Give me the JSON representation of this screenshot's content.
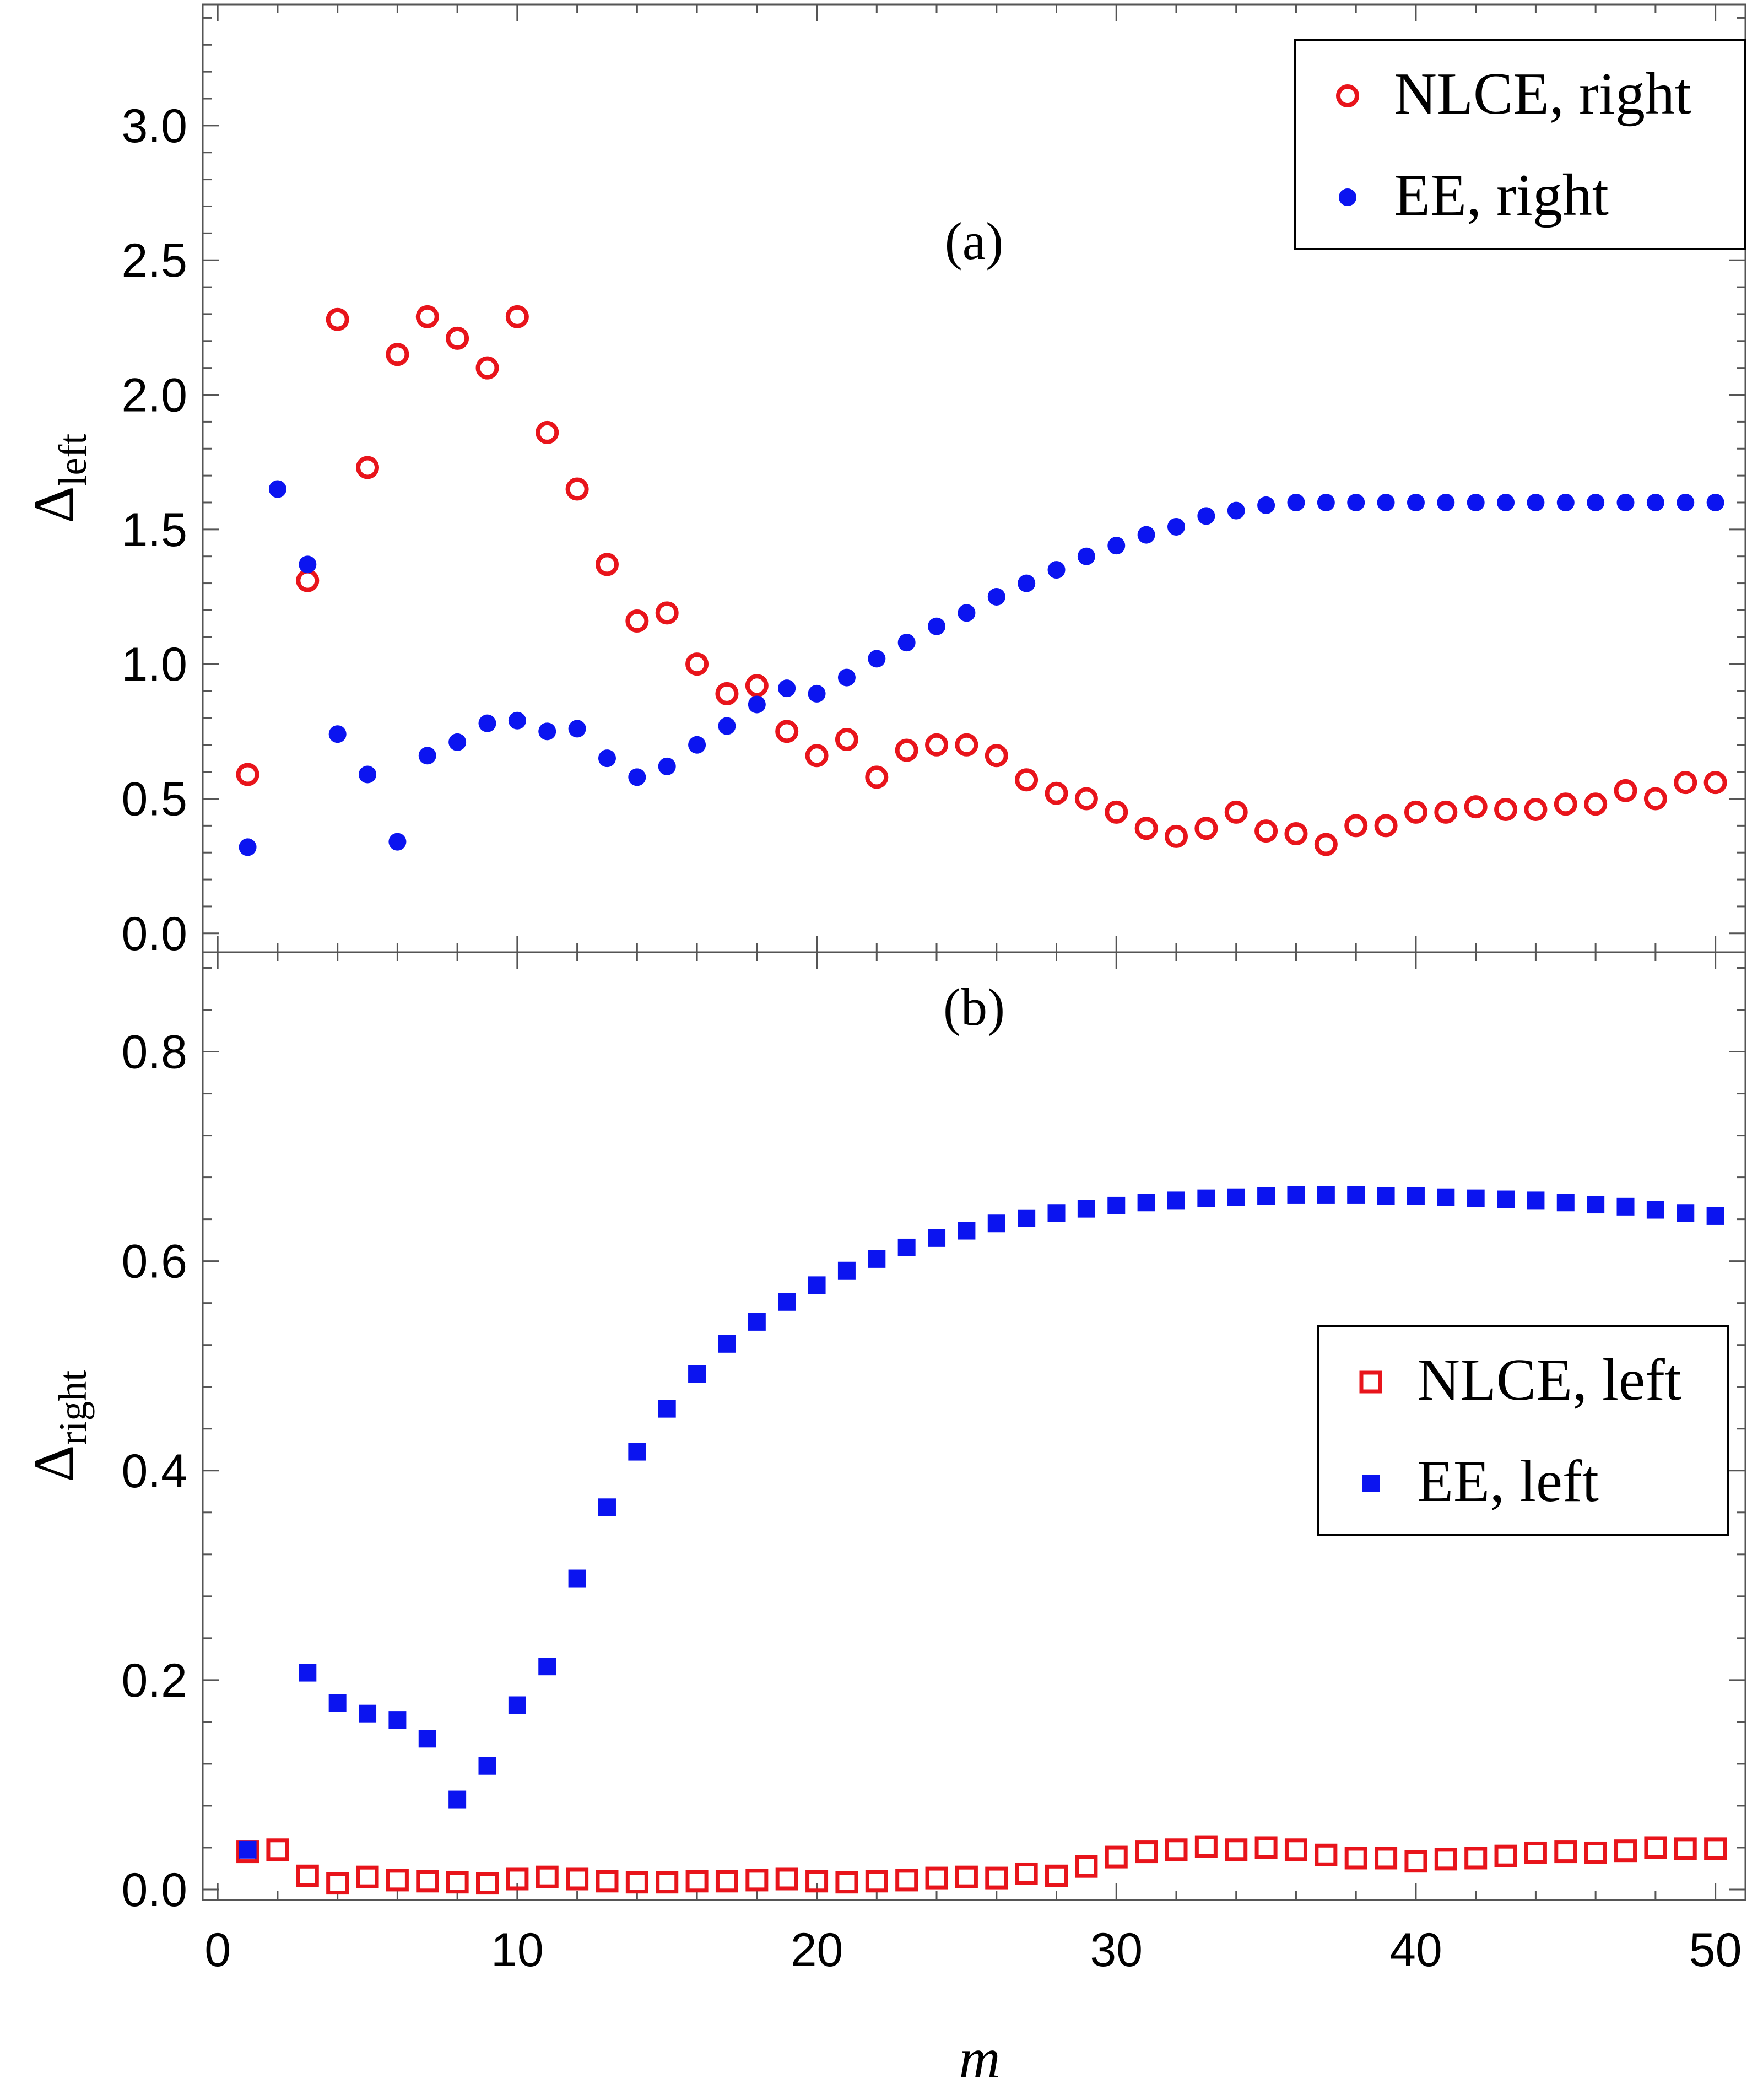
{
  "chart_data": [
    {
      "type": "scatter",
      "panel_label": "(a)",
      "ylabel_main": "Δ",
      "ylabel_sub": "left",
      "xlabel": "",
      "xlim": [
        -0.5,
        51
      ],
      "ylim": [
        -0.07,
        3.45
      ],
      "xticks": [
        "0",
        "10",
        "20",
        "30",
        "40",
        "50"
      ],
      "yticks": [
        "0.0",
        "0.5",
        "1.0",
        "1.5",
        "2.0",
        "2.5",
        "3.0"
      ],
      "legend_position": "top-right",
      "series": [
        {
          "name": "NLCE, right",
          "marker": "open-circle",
          "color": "#e8141b",
          "x": [
            1,
            3,
            4,
            5,
            6,
            7,
            8,
            9,
            10,
            11,
            12,
            13,
            14,
            15,
            16,
            17,
            18,
            19,
            20,
            21,
            22,
            23,
            24,
            25,
            26,
            27,
            28,
            29,
            30,
            31,
            32,
            33,
            34,
            35,
            36,
            37,
            38,
            39,
            40,
            41,
            42,
            43,
            44,
            45,
            46,
            47,
            48,
            49,
            50
          ],
          "y": [
            0.59,
            1.31,
            2.28,
            1.73,
            2.15,
            2.29,
            2.21,
            2.1,
            2.29,
            1.86,
            1.65,
            1.37,
            1.16,
            1.19,
            1.0,
            0.89,
            0.92,
            0.75,
            0.66,
            0.72,
            0.58,
            0.68,
            0.7,
            0.7,
            0.66,
            0.57,
            0.52,
            0.5,
            0.45,
            0.39,
            0.36,
            0.39,
            0.45,
            0.38,
            0.37,
            0.33,
            0.4,
            0.4,
            0.45,
            0.45,
            0.47,
            0.46,
            0.46,
            0.48,
            0.48,
            0.53,
            0.5,
            0.56,
            0.56
          ]
        },
        {
          "name": "EE, right",
          "marker": "filled-circle",
          "color": "#0b14f0",
          "x": [
            1,
            2,
            3,
            4,
            5,
            6,
            7,
            8,
            9,
            10,
            11,
            12,
            13,
            14,
            15,
            16,
            17,
            18,
            19,
            20,
            21,
            22,
            23,
            24,
            25,
            26,
            27,
            28,
            29,
            30,
            31,
            32,
            33,
            34,
            35,
            36,
            37,
            38,
            39,
            40,
            41,
            42,
            43,
            44,
            45,
            46,
            47,
            48,
            49,
            50
          ],
          "y": [
            0.32,
            1.65,
            1.37,
            0.74,
            0.59,
            0.34,
            0.66,
            0.71,
            0.78,
            0.79,
            0.75,
            0.76,
            0.65,
            0.58,
            0.62,
            0.7,
            0.77,
            0.85,
            0.91,
            0.89,
            0.95,
            1.02,
            1.08,
            1.14,
            1.19,
            1.25,
            1.3,
            1.35,
            1.4,
            1.44,
            1.48,
            1.51,
            1.55,
            1.57,
            1.59,
            1.6,
            1.6,
            1.6,
            1.6,
            1.6,
            1.6,
            1.6,
            1.6,
            1.6,
            1.6,
            1.6,
            1.6,
            1.6,
            1.6,
            1.6
          ]
        }
      ]
    },
    {
      "type": "scatter",
      "panel_label": "(b)",
      "ylabel_main": "Δ",
      "ylabel_sub": "right",
      "xlabel": "m",
      "xlim": [
        -0.5,
        51
      ],
      "ylim": [
        -0.01,
        0.895
      ],
      "xticks": [
        "0",
        "10",
        "20",
        "30",
        "40",
        "50"
      ],
      "yticks": [
        "0.0",
        "0.2",
        "0.4",
        "0.6",
        "0.8"
      ],
      "legend_position": "center-right",
      "series": [
        {
          "name": "NLCE, left",
          "marker": "open-square",
          "color": "#e8141b",
          "x": [
            1,
            2,
            3,
            4,
            5,
            6,
            7,
            8,
            9,
            10,
            11,
            12,
            13,
            14,
            15,
            16,
            17,
            18,
            19,
            20,
            21,
            22,
            23,
            24,
            25,
            26,
            27,
            28,
            29,
            30,
            31,
            32,
            33,
            34,
            35,
            36,
            37,
            38,
            39,
            40,
            41,
            42,
            43,
            44,
            45,
            46,
            47,
            48,
            49,
            50
          ],
          "y": [
            0.036,
            0.038,
            0.013,
            0.006,
            0.012,
            0.009,
            0.008,
            0.007,
            0.006,
            0.01,
            0.012,
            0.01,
            0.008,
            0.007,
            0.007,
            0.008,
            0.008,
            0.009,
            0.01,
            0.008,
            0.007,
            0.008,
            0.009,
            0.011,
            0.012,
            0.011,
            0.015,
            0.013,
            0.022,
            0.031,
            0.036,
            0.038,
            0.041,
            0.038,
            0.04,
            0.038,
            0.033,
            0.03,
            0.03,
            0.027,
            0.029,
            0.03,
            0.032,
            0.035,
            0.036,
            0.035,
            0.037,
            0.04,
            0.039,
            0.039
          ]
        },
        {
          "name": "EE, left",
          "marker": "filled-square",
          "color": "#0b14f0",
          "x": [
            1,
            3,
            4,
            5,
            6,
            7,
            8,
            9,
            10,
            11,
            12,
            13,
            14,
            15,
            16,
            17,
            18,
            19,
            20,
            21,
            22,
            23,
            24,
            25,
            26,
            27,
            28,
            29,
            30,
            31,
            32,
            33,
            34,
            35,
            36,
            37,
            38,
            39,
            40,
            41,
            42,
            43,
            44,
            45,
            46,
            47,
            48,
            49,
            50
          ],
          "y": [
            0.038,
            0.207,
            0.178,
            0.168,
            0.162,
            0.144,
            0.086,
            0.118,
            0.176,
            0.213,
            0.297,
            0.365,
            0.418,
            0.459,
            0.492,
            0.521,
            0.542,
            0.561,
            0.577,
            0.591,
            0.602,
            0.613,
            0.622,
            0.629,
            0.636,
            0.641,
            0.646,
            0.65,
            0.653,
            0.656,
            0.658,
            0.66,
            0.661,
            0.662,
            0.663,
            0.663,
            0.663,
            0.662,
            0.662,
            0.661,
            0.66,
            0.659,
            0.658,
            0.656,
            0.654,
            0.652,
            0.649,
            0.646,
            0.643
          ]
        }
      ]
    }
  ]
}
